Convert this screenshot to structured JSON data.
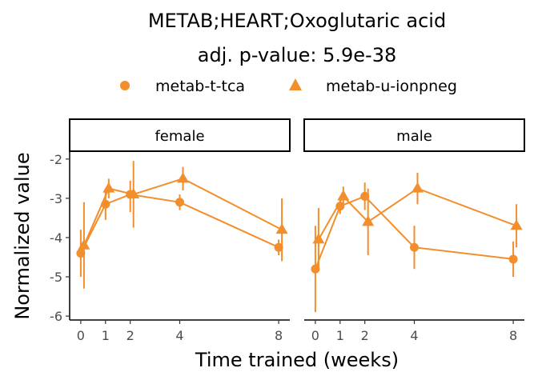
{
  "chart_data": {
    "type": "line",
    "title": "METAB;HEART;Oxoglutaric acid",
    "subtitle": "adj. p-value: 5.9e-38",
    "xlabel": "Time trained (weeks)",
    "ylabel": "Normalized value",
    "x_ticks": [
      0,
      1,
      2,
      4,
      8
    ],
    "y_ticks": [
      -2,
      -3,
      -4,
      -5,
      -6
    ],
    "xlim": [
      -0.45,
      8.45
    ],
    "ylim": [
      -6.1,
      -1.8
    ],
    "color": "#f28e2b",
    "legend": [
      {
        "name": "metab-t-tca",
        "shape": "circle"
      },
      {
        "name": "metab-u-ionpneg",
        "shape": "triangle"
      }
    ],
    "panels": [
      {
        "label": "female",
        "series": [
          {
            "name": "metab-t-tca",
            "shape": "circle",
            "points": [
              {
                "x": 0,
                "y": -4.4,
                "lo": -5.0,
                "hi": -3.8
              },
              {
                "x": 1,
                "y": -3.15,
                "lo": -3.55,
                "hi": -2.75
              },
              {
                "x": 2,
                "y": -2.9,
                "lo": -3.35,
                "hi": -2.55
              },
              {
                "x": 4,
                "y": -3.1,
                "lo": -3.3,
                "hi": -2.9
              },
              {
                "x": 8,
                "y": -4.25,
                "lo": -4.45,
                "hi": -4.05
              }
            ]
          },
          {
            "name": "metab-u-ionpneg",
            "shape": "triangle",
            "points": [
              {
                "x": 0,
                "y": -4.2,
                "lo": -5.3,
                "hi": -3.1
              },
              {
                "x": 1,
                "y": -2.75,
                "lo": -3.0,
                "hi": -2.5
              },
              {
                "x": 2,
                "y": -2.9,
                "lo": -3.75,
                "hi": -2.05
              },
              {
                "x": 4,
                "y": -2.5,
                "lo": -2.8,
                "hi": -2.2
              },
              {
                "x": 8,
                "y": -3.8,
                "lo": -4.6,
                "hi": -3.0
              }
            ]
          }
        ]
      },
      {
        "label": "male",
        "series": [
          {
            "name": "metab-t-tca",
            "shape": "circle",
            "points": [
              {
                "x": 0,
                "y": -4.8,
                "lo": -5.9,
                "hi": -3.7
              },
              {
                "x": 1,
                "y": -3.2,
                "lo": -3.4,
                "hi": -3.0
              },
              {
                "x": 2,
                "y": -2.95,
                "lo": -3.3,
                "hi": -2.6
              },
              {
                "x": 4,
                "y": -4.25,
                "lo": -4.8,
                "hi": -3.7
              },
              {
                "x": 8,
                "y": -4.55,
                "lo": -5.0,
                "hi": -4.1
              }
            ]
          },
          {
            "name": "metab-u-ionpneg",
            "shape": "triangle",
            "points": [
              {
                "x": 0,
                "y": -4.05,
                "lo": -4.85,
                "hi": -3.25
              },
              {
                "x": 1,
                "y": -2.95,
                "lo": -3.2,
                "hi": -2.7
              },
              {
                "x": 2,
                "y": -3.6,
                "lo": -4.45,
                "hi": -2.75
              },
              {
                "x": 4,
                "y": -2.75,
                "lo": -3.15,
                "hi": -2.35
              },
              {
                "x": 8,
                "y": -3.7,
                "lo": -4.25,
                "hi": -3.15
              }
            ]
          }
        ]
      }
    ]
  }
}
